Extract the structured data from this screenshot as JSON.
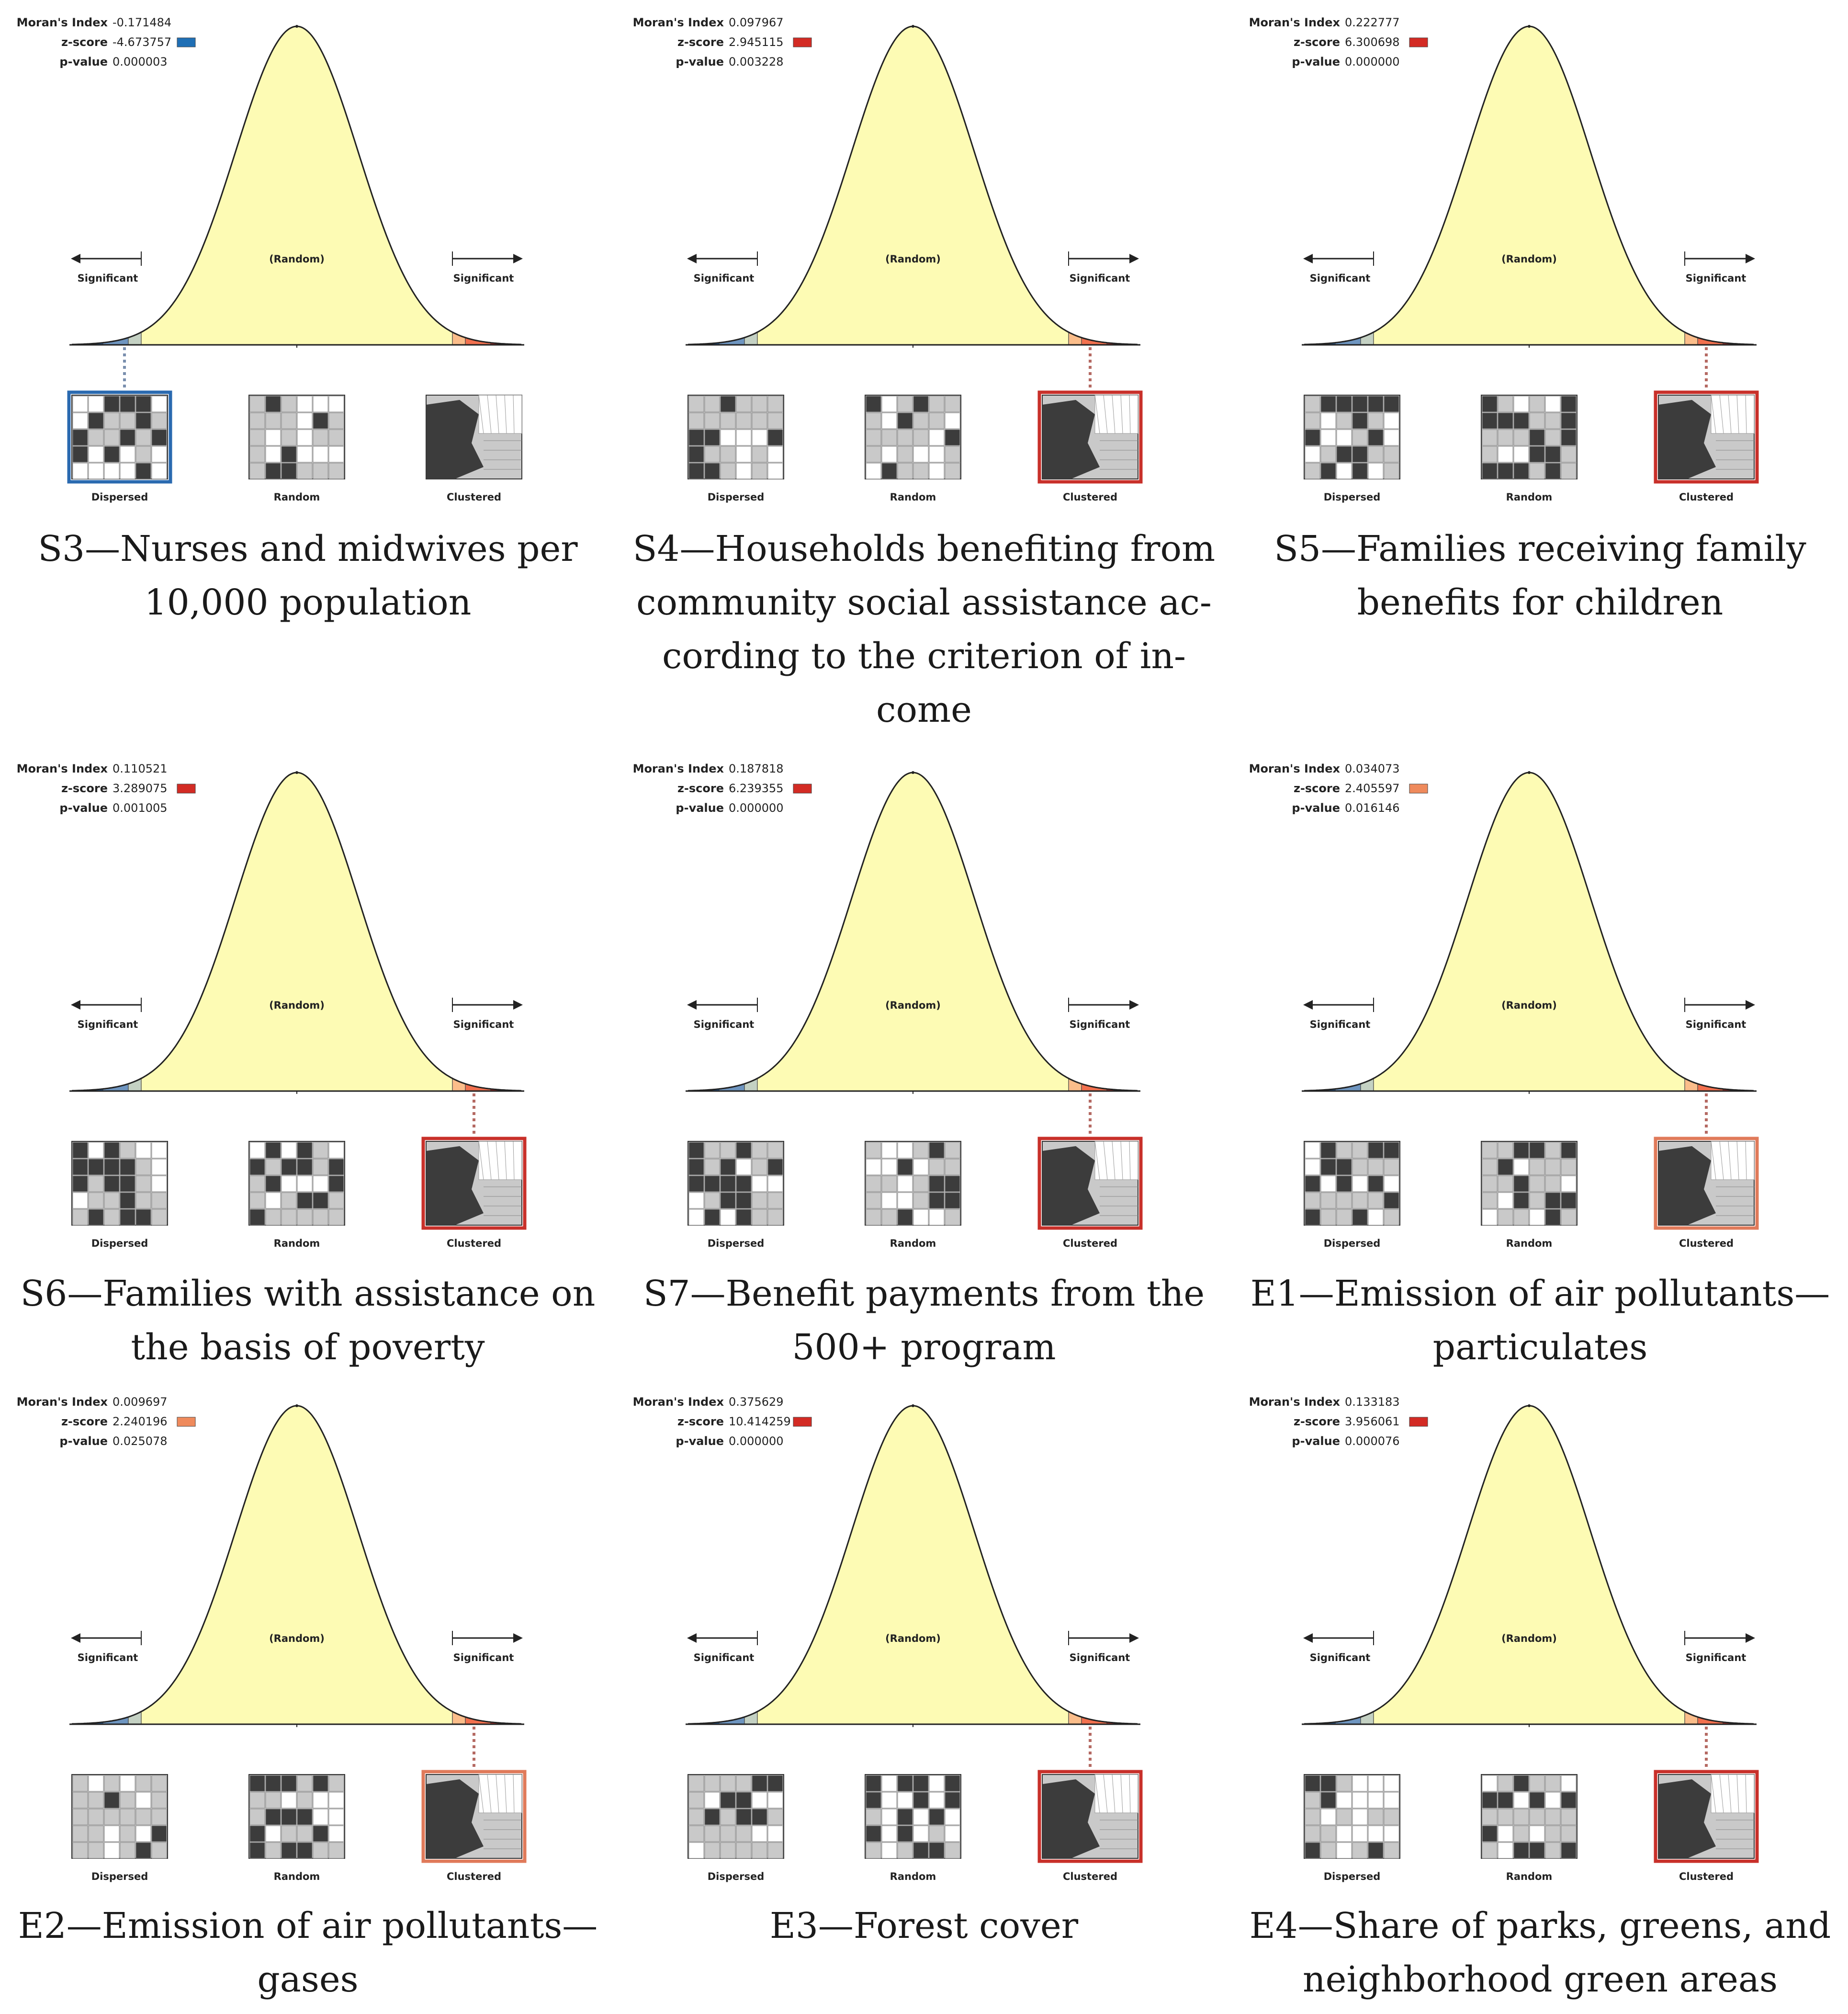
{
  "labels": {
    "morans_index": "Moran's Index",
    "z_score": "z-score",
    "p_value": "p-value",
    "significant": "Significant",
    "random": "(Random)",
    "dispersed": "Dispersed",
    "random_map": "Random",
    "clustered": "Clustered"
  },
  "colors": {
    "curve_fill": "#fdfbb4",
    "blue_dark": "#1f5ea8",
    "blue_mid": "#6e95c0",
    "blue_light": "#c4d1c3",
    "red_light": "#fbbd8a",
    "red_mid": "#f2704e",
    "red_dark": "#d32b24",
    "dot_blue": "#7a8fae",
    "dot_red": "#b56a63"
  },
  "chart_data": [
    {
      "type": "normal-distribution",
      "id": "S3",
      "caption": [
        "S3—Nurses and midwives per",
        "10,000 population"
      ],
      "morans_index": "-0.171484",
      "z_score": "-4.673757",
      "p_value": "0.000003",
      "z_color": "#1f6fb5",
      "highlight": "dispersed",
      "highlight_color": "#2a6ab0"
    },
    {
      "type": "normal-distribution",
      "id": "S4",
      "caption": [
        "S4—Households benefiting from",
        "community social assistance ac-",
        "cording to the criterion of in-",
        "come"
      ],
      "morans_index": "0.097967",
      "z_score": "2.945115",
      "p_value": "0.003228",
      "z_color": "#d32b24",
      "highlight": "clustered",
      "highlight_color": "#c8302a"
    },
    {
      "type": "normal-distribution",
      "id": "S5",
      "caption": [
        "S5—Families receiving family",
        "benefits for children"
      ],
      "morans_index": "0.222777",
      "z_score": "6.300698",
      "p_value": "0.000000",
      "z_color": "#d32b24",
      "highlight": "clustered",
      "highlight_color": "#c8302a"
    },
    {
      "type": "normal-distribution",
      "id": "S6",
      "caption": [
        "S6—Families with assistance on",
        "the basis of poverty"
      ],
      "morans_index": "0.110521",
      "z_score": "3.289075",
      "p_value": "0.001005",
      "z_color": "#d32b24",
      "highlight": "clustered",
      "highlight_color": "#c8302a"
    },
    {
      "type": "normal-distribution",
      "id": "S7",
      "caption": [
        "S7—Benefit payments from the",
        "500+ program"
      ],
      "morans_index": "0.187818",
      "z_score": "6.239355",
      "p_value": "0.000000",
      "z_color": "#d32b24",
      "highlight": "clustered",
      "highlight_color": "#c8302a"
    },
    {
      "type": "normal-distribution",
      "id": "E1",
      "caption": [
        "E1—Emission of air pollutants—",
        "particulates"
      ],
      "morans_index": "0.034073",
      "z_score": "2.405597",
      "p_value": "0.016146",
      "z_color": "#ef8a5c",
      "highlight": "clustered",
      "highlight_color": "#e07a5a"
    },
    {
      "type": "normal-distribution",
      "id": "E2",
      "caption": [
        "E2—Emission of air pollutants—",
        "gases"
      ],
      "morans_index": "0.009697",
      "z_score": "2.240196",
      "p_value": "0.025078",
      "z_color": "#ef8a5c",
      "highlight": "clustered",
      "highlight_color": "#e07a5a"
    },
    {
      "type": "normal-distribution",
      "id": "E3",
      "caption": [
        "E3—Forest cover"
      ],
      "morans_index": "0.375629",
      "z_score": "10.414259",
      "p_value": "0.000000",
      "z_color": "#d32b24",
      "highlight": "clustered",
      "highlight_color": "#c8302a"
    },
    {
      "type": "normal-distribution",
      "id": "E4",
      "caption": [
        "E4—Share of parks, greens, and",
        "neighborhood green areas"
      ],
      "morans_index": "0.133183",
      "z_score": "3.956061",
      "p_value": "0.000076",
      "z_color": "#d32b24",
      "highlight": "clustered",
      "highlight_color": "#c8302a"
    }
  ]
}
